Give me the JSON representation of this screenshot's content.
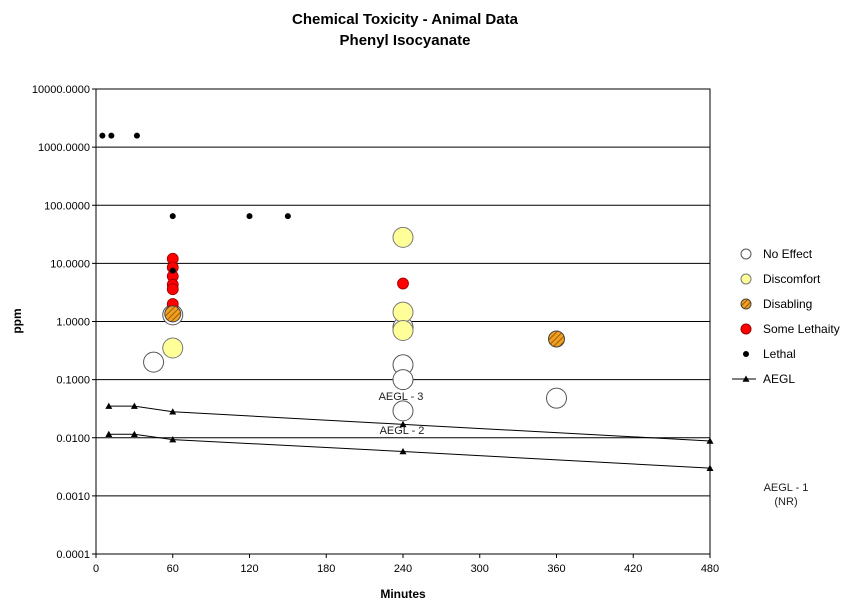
{
  "chart_data": {
    "type": "scatter",
    "title": "Chemical Toxicity - Animal Data",
    "subtitle": "Phenyl Isocyanate",
    "xlabel": "Minutes",
    "ylabel": "ppm",
    "xlim": [
      0,
      480
    ],
    "ylim": [
      0.0001,
      10000
    ],
    "yscale": "log",
    "grid": "horizontal major lines",
    "legend_position": "right",
    "x_ticks": [
      "0",
      "60",
      "120",
      "180",
      "240",
      "300",
      "360",
      "420",
      "480"
    ],
    "x_tick_values": [
      0,
      60,
      120,
      180,
      240,
      300,
      360,
      420,
      480
    ],
    "y_ticks": [
      "10000.0000",
      "1000.0000",
      "100.0000",
      "10.0000",
      "1.0000",
      "0.1000",
      "0.0100",
      "0.0010",
      "0.0001"
    ],
    "y_tick_values": [
      10000,
      1000,
      100,
      10,
      1,
      0.1,
      0.01,
      0.001,
      0.0001
    ],
    "series": [
      {
        "name": "No Effect",
        "marker": "large-circle",
        "fill": "#ffffff",
        "stroke": "#555555",
        "points": [
          [
            45,
            0.2
          ],
          [
            60,
            1.3
          ],
          [
            240,
            0.8
          ],
          [
            240,
            0.18
          ],
          [
            240,
            0.1
          ],
          [
            240,
            0.029
          ],
          [
            360,
            0.048
          ]
        ]
      },
      {
        "name": "Discomfort",
        "marker": "large-circle",
        "fill": "#ffff99",
        "stroke": "#777777",
        "points": [
          [
            60,
            0.35
          ],
          [
            240,
            28
          ],
          [
            240,
            1.45
          ],
          [
            240,
            0.7
          ]
        ]
      },
      {
        "name": "Disabling",
        "marker": "hatched-circle",
        "fill": "#e69a1e",
        "stroke": "#444444",
        "points": [
          [
            60,
            1.35
          ],
          [
            360,
            0.5
          ]
        ]
      },
      {
        "name": "Some Lethaity",
        "marker": "circle",
        "fill": "#ff0000",
        "stroke": "#990000",
        "points": [
          [
            60,
            12
          ],
          [
            60,
            8.5
          ],
          [
            60,
            6
          ],
          [
            60,
            4.3
          ],
          [
            60,
            3.6
          ],
          [
            60,
            2.0
          ],
          [
            240,
            4.5
          ]
        ]
      },
      {
        "name": "Lethal",
        "marker": "dot",
        "fill": "#000000",
        "stroke": "#000000",
        "points": [
          [
            5,
            1580
          ],
          [
            12,
            1580
          ],
          [
            32,
            1580
          ],
          [
            60,
            65
          ],
          [
            60,
            7.5
          ],
          [
            120,
            65
          ],
          [
            150,
            65
          ]
        ]
      },
      {
        "name": "AEGL",
        "marker": "triangle-line",
        "fill": "#000000",
        "stroke": "#000000",
        "lines": [
          {
            "label": "AEGL - 3",
            "points": [
              [
                10,
                0.035
              ],
              [
                30,
                0.035
              ],
              [
                60,
                0.028
              ],
              [
                240,
                0.017
              ],
              [
                480,
                0.0088
              ]
            ]
          },
          {
            "label": "AEGL - 2",
            "points": [
              [
                10,
                0.0115
              ],
              [
                30,
                0.0115
              ],
              [
                60,
                0.0093
              ],
              [
                240,
                0.0058
              ],
              [
                480,
                0.003
              ]
            ]
          }
        ]
      }
    ],
    "annotations": [
      {
        "text": "AEGL - 3"
      },
      {
        "text": "AEGL - 2"
      },
      {
        "text": "AEGL - 1"
      },
      {
        "text": "(NR)"
      }
    ]
  }
}
